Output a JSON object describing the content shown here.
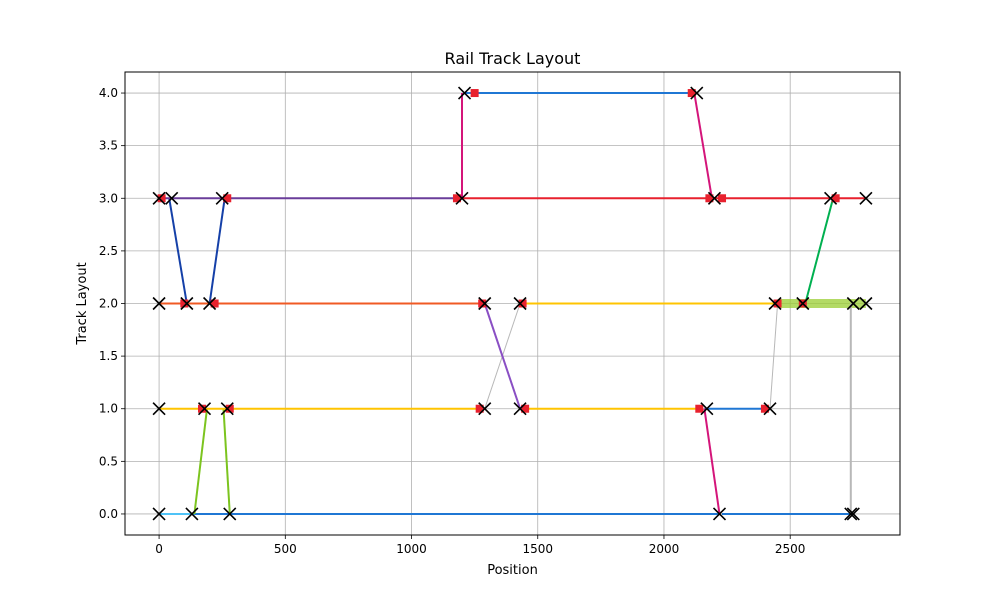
{
  "chart_data": {
    "type": "line",
    "title": "Rail Track Layout",
    "xlabel": "Position",
    "ylabel": "Track Layout",
    "xlim": [
      -135,
      2935
    ],
    "ylim": [
      -0.2,
      4.2
    ],
    "xticks": [
      0,
      500,
      1000,
      1500,
      2000,
      2500
    ],
    "xtick_labels": [
      "0",
      "500",
      "1000",
      "1500",
      "2000",
      "2500"
    ],
    "yticks": [
      0,
      0.5,
      1,
      1.5,
      2,
      2.5,
      3,
      3.5,
      4
    ],
    "ytick_labels": [
      "0.0",
      "0.5",
      "1.0",
      "1.5",
      "2.0",
      "2.5",
      "3.0",
      "3.5",
      "4.0"
    ],
    "grid": true,
    "colors": {
      "grid": "#b0b0b0",
      "blue": "#1f77d4",
      "dark_blue": "#1540a8",
      "red": "#e8212e",
      "orange": "#ff9900",
      "yellow": "#ffc400",
      "magenta": "#d4157a",
      "purple": "#8a4fc4",
      "green": "#00b050",
      "lime": "#7cc41f",
      "light_green_band": "#9acd32",
      "gray": "#b8b8b8",
      "orange_red": "#f05a24",
      "violet": "#6a3d9a",
      "sky": "#4fc3f7"
    },
    "series": [
      {
        "color": "blue",
        "width": 2,
        "x": [
          0,
          2220
        ],
        "y": [
          0,
          0
        ]
      },
      {
        "color": "blue",
        "width": 2,
        "x": [
          2230,
          2740
        ],
        "y": [
          0,
          0
        ]
      },
      {
        "color": "sky",
        "width": 2,
        "x": [
          0,
          140
        ],
        "y": [
          0,
          0
        ]
      },
      {
        "color": "lime",
        "width": 2,
        "x": [
          140,
          190
        ],
        "y": [
          0,
          1
        ]
      },
      {
        "color": "lime",
        "width": 2,
        "x": [
          255,
          280
        ],
        "y": [
          1,
          0
        ]
      },
      {
        "color": "yellow",
        "width": 2,
        "x": [
          0,
          1280
        ],
        "y": [
          1,
          1
        ]
      },
      {
        "color": "yellow",
        "width": 2,
        "x": [
          1440,
          2140
        ],
        "y": [
          1,
          1
        ]
      },
      {
        "color": "blue",
        "width": 2,
        "x": [
          2160,
          2420
        ],
        "y": [
          1,
          1
        ]
      },
      {
        "color": "magenta",
        "width": 2,
        "x": [
          2160,
          2220
        ],
        "y": [
          1,
          0
        ]
      },
      {
        "color": "gray",
        "width": 1,
        "x": [
          1290,
          1430
        ],
        "y": [
          1,
          2
        ]
      },
      {
        "color": "purple",
        "width": 2,
        "x": [
          1290,
          1430
        ],
        "y": [
          2,
          1
        ]
      },
      {
        "color": "gray",
        "width": 1,
        "x": [
          2420,
          2450
        ],
        "y": [
          1,
          2
        ]
      },
      {
        "color": "orange_red",
        "width": 2,
        "x": [
          0,
          1280
        ],
        "y": [
          2,
          2
        ]
      },
      {
        "color": "yellow",
        "width": 2,
        "x": [
          1440,
          2450
        ],
        "y": [
          2,
          2
        ]
      },
      {
        "color": "light_green_band",
        "width": 9,
        "x": [
          2450,
          2800
        ],
        "y": [
          2,
          2
        ]
      },
      {
        "color": "dark_blue",
        "width": 2,
        "x": [
          40,
          110
        ],
        "y": [
          3,
          2
        ]
      },
      {
        "color": "dark_blue",
        "width": 2,
        "x": [
          200,
          260
        ],
        "y": [
          2,
          3
        ]
      },
      {
        "color": "violet",
        "width": 2,
        "x": [
          0,
          1200
        ],
        "y": [
          3,
          3
        ]
      },
      {
        "color": "red",
        "width": 2,
        "x": [
          1200,
          2800
        ],
        "y": [
          3,
          3
        ]
      },
      {
        "color": "green",
        "width": 2,
        "x": [
          2560,
          2670
        ],
        "y": [
          2,
          3
        ]
      },
      {
        "color": "magenta",
        "width": 2,
        "x": [
          1200,
          1200
        ],
        "y": [
          3,
          4
        ]
      },
      {
        "color": "blue",
        "width": 2,
        "x": [
          1210,
          2120
        ],
        "y": [
          4,
          4
        ]
      },
      {
        "color": "magenta",
        "width": 2,
        "x": [
          2120,
          2190
        ],
        "y": [
          4,
          3
        ]
      },
      {
        "color": "gray",
        "width": 2,
        "x": [
          2740,
          2740
        ],
        "y": [
          2,
          0
        ]
      }
    ],
    "endpoint_markers": {
      "color": "red",
      "points": [
        [
          10,
          3
        ],
        [
          270,
          3
        ],
        [
          1180,
          3
        ],
        [
          2180,
          3
        ],
        [
          2230,
          3
        ],
        [
          2680,
          3
        ],
        [
          1250,
          4
        ],
        [
          2110,
          4
        ],
        [
          100,
          2
        ],
        [
          220,
          2
        ],
        [
          1280,
          2
        ],
        [
          1440,
          2
        ],
        [
          2450,
          2
        ],
        [
          2550,
          2
        ],
        [
          170,
          1
        ],
        [
          280,
          1
        ],
        [
          1270,
          1
        ],
        [
          1450,
          1
        ],
        [
          2140,
          1
        ],
        [
          2400,
          1
        ]
      ]
    },
    "x_markers": [
      [
        0,
        3
      ],
      [
        50,
        3
      ],
      [
        250,
        3
      ],
      [
        1200,
        3
      ],
      [
        2200,
        3
      ],
      [
        2660,
        3
      ],
      [
        2800,
        3
      ],
      [
        1210,
        4
      ],
      [
        2130,
        4
      ],
      [
        0,
        2
      ],
      [
        110,
        2
      ],
      [
        200,
        2
      ],
      [
        1290,
        2
      ],
      [
        1430,
        2
      ],
      [
        2440,
        2
      ],
      [
        2550,
        2
      ],
      [
        2750,
        2
      ],
      [
        2800,
        2
      ],
      [
        0,
        1
      ],
      [
        180,
        1
      ],
      [
        270,
        1
      ],
      [
        1290,
        1
      ],
      [
        1430,
        1
      ],
      [
        2170,
        1
      ],
      [
        2420,
        1
      ],
      [
        0,
        0
      ],
      [
        130,
        0
      ],
      [
        280,
        0
      ],
      [
        2220,
        0
      ],
      [
        2740,
        0
      ],
      [
        2750,
        0
      ]
    ]
  }
}
